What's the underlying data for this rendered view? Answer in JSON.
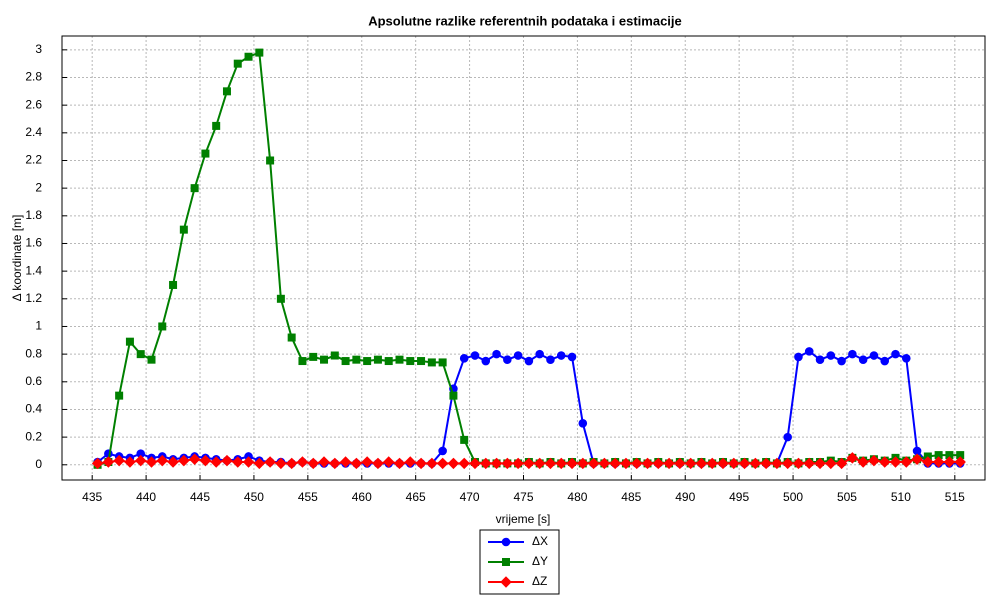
{
  "chart_data": {
    "type": "line",
    "title": "Apsolutne razlike referentnih podataka i estimacije",
    "x_label": "vrijeme [s]",
    "y_label": "Δ koordinate [m]",
    "xlim": [
      432.2,
      517.8
    ],
    "ylim": [
      -0.11,
      3.1
    ],
    "xticks": [
      435,
      440,
      445,
      450,
      455,
      460,
      465,
      470,
      475,
      480,
      485,
      490,
      495,
      500,
      505,
      510,
      515
    ],
    "yticks": [
      0,
      0.2,
      0.4,
      0.6,
      0.8,
      1,
      1.2,
      1.4,
      1.6,
      1.8,
      2,
      2.2,
      2.4,
      2.6,
      2.8,
      3
    ],
    "grid": true,
    "legend": "bottom",
    "x": [
      435.5,
      436.5,
      437.5,
      438.5,
      439.5,
      440.5,
      441.5,
      442.5,
      443.5,
      444.5,
      445.5,
      446.5,
      447.5,
      448.5,
      449.5,
      450.5,
      451.5,
      452.5,
      453.5,
      454.5,
      455.5,
      456.5,
      457.5,
      458.5,
      459.5,
      460.5,
      461.5,
      462.5,
      463.5,
      464.5,
      465.5,
      466.5,
      467.5,
      468.5,
      469.5,
      470.5,
      471.5,
      472.5,
      473.5,
      474.5,
      475.5,
      476.5,
      477.5,
      478.5,
      479.5,
      480.5,
      481.5,
      482.5,
      483.5,
      484.5,
      485.5,
      486.5,
      487.5,
      488.5,
      489.5,
      490.5,
      491.5,
      492.5,
      493.5,
      494.5,
      495.5,
      496.5,
      497.5,
      498.5,
      499.5,
      500.5,
      501.5,
      502.5,
      503.5,
      504.5,
      505.5,
      506.5,
      507.5,
      508.5,
      509.5,
      510.5,
      511.5,
      512.5,
      513.5,
      514.5,
      515.5
    ],
    "series": [
      {
        "name": "ΔX",
        "color": "#0000ff",
        "marker": "circle",
        "values": [
          0.02,
          0.08,
          0.06,
          0.05,
          0.08,
          0.05,
          0.06,
          0.04,
          0.05,
          0.06,
          0.05,
          0.04,
          0.03,
          0.04,
          0.06,
          0.03,
          0.02,
          0.02,
          0.01,
          0.02,
          0.01,
          0.01,
          0.01,
          0.01,
          0.01,
          0.01,
          0.01,
          0.01,
          0.01,
          0.01,
          0.01,
          0.01,
          0.1,
          0.55,
          0.77,
          0.79,
          0.75,
          0.8,
          0.76,
          0.79,
          0.75,
          0.8,
          0.76,
          0.79,
          0.78,
          0.3,
          0.01,
          0.01,
          0.01,
          0.01,
          0.01,
          0.01,
          0.01,
          0.01,
          0.01,
          0.01,
          0.01,
          0.01,
          0.01,
          0.01,
          0.01,
          0.01,
          0.01,
          0.01,
          0.2,
          0.78,
          0.82,
          0.76,
          0.79,
          0.75,
          0.8,
          0.76,
          0.79,
          0.75,
          0.8,
          0.77,
          0.1,
          0.01,
          0.01,
          0.01,
          0.01
        ]
      },
      {
        "name": "ΔY",
        "color": "#008000",
        "marker": "square",
        "values": [
          0,
          0.02,
          0.5,
          0.89,
          0.8,
          0.76,
          1.0,
          1.3,
          1.7,
          2.0,
          2.25,
          2.45,
          2.7,
          2.9,
          2.95,
          2.98,
          2.2,
          1.2,
          0.92,
          0.75,
          0.78,
          0.76,
          0.79,
          0.75,
          0.76,
          0.75,
          0.76,
          0.75,
          0.76,
          0.75,
          0.75,
          0.74,
          0.74,
          0.5,
          0.18,
          0.02,
          0.01,
          0.01,
          0.01,
          0.01,
          0.02,
          0.01,
          0.02,
          0.01,
          0.02,
          0.01,
          0.02,
          0.01,
          0.02,
          0.01,
          0.02,
          0.01,
          0.02,
          0.01,
          0.02,
          0.01,
          0.02,
          0.01,
          0.02,
          0.01,
          0.02,
          0.01,
          0.02,
          0.01,
          0.02,
          0.01,
          0.02,
          0.02,
          0.03,
          0.02,
          0.05,
          0.03,
          0.04,
          0.03,
          0.05,
          0.03,
          0.04,
          0.06,
          0.07,
          0.07,
          0.07
        ]
      },
      {
        "name": "ΔZ",
        "color": "#ff0000",
        "marker": "diamond",
        "values": [
          0.01,
          0.02,
          0.03,
          0.02,
          0.03,
          0.02,
          0.03,
          0.02,
          0.03,
          0.04,
          0.03,
          0.02,
          0.03,
          0.02,
          0.02,
          0.01,
          0.02,
          0.01,
          0.01,
          0.02,
          0.01,
          0.02,
          0.01,
          0.02,
          0.01,
          0.02,
          0.01,
          0.02,
          0.01,
          0.02,
          0.01,
          0.01,
          0.01,
          0.01,
          0.01,
          0.01,
          0.01,
          0.01,
          0.01,
          0.01,
          0.01,
          0.01,
          0.01,
          0.01,
          0.01,
          0.01,
          0.01,
          0.01,
          0.01,
          0.01,
          0.01,
          0.01,
          0.01,
          0.01,
          0.01,
          0.01,
          0.01,
          0.01,
          0.01,
          0.01,
          0.01,
          0.01,
          0.01,
          0.01,
          0.01,
          0.01,
          0.01,
          0.01,
          0.01,
          0.01,
          0.05,
          0.02,
          0.03,
          0.02,
          0.02,
          0.02,
          0.04,
          0.02,
          0.02,
          0.02,
          0.02
        ]
      }
    ]
  }
}
